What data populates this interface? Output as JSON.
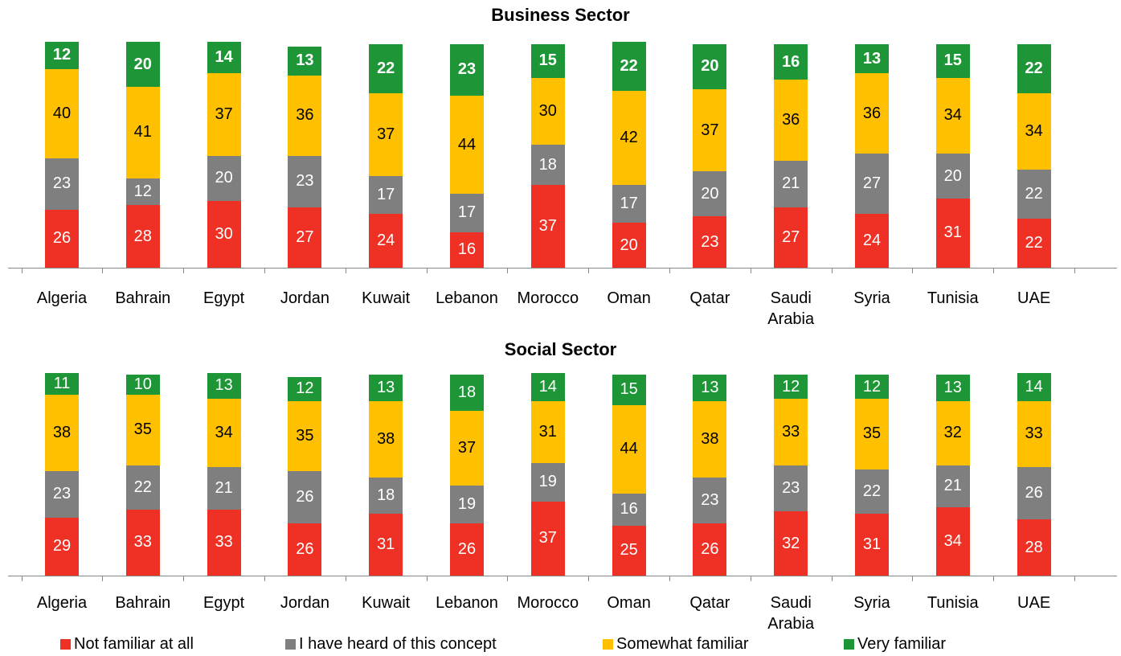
{
  "chart_data": [
    {
      "type": "stacked_bar",
      "title": "Business Sector",
      "categories": [
        "Algeria",
        "Bahrain",
        "Egypt",
        "Jordan",
        "Kuwait",
        "Lebanon",
        "Morocco",
        "Oman",
        "Qatar",
        "Saudi Arabia",
        "Syria",
        "Tunisia",
        "UAE"
      ],
      "series": [
        {
          "name": "Not familiar at all",
          "color": "#ee3124",
          "values": [
            26,
            28,
            30,
            27,
            24,
            16,
            37,
            20,
            23,
            27,
            24,
            31,
            22
          ]
        },
        {
          "name": "I have heard of this concept",
          "color": "#7f7f7f",
          "values": [
            23,
            12,
            20,
            23,
            17,
            17,
            18,
            17,
            20,
            21,
            27,
            20,
            22
          ]
        },
        {
          "name": "Somewhat familiar",
          "color": "#ffc000",
          "values": [
            40,
            41,
            37,
            36,
            37,
            44,
            30,
            42,
            37,
            36,
            36,
            34,
            34
          ]
        },
        {
          "name": "Very familiar",
          "color": "#1e9637",
          "values": [
            12,
            20,
            14,
            13,
            22,
            23,
            15,
            22,
            20,
            16,
            13,
            15,
            22
          ]
        }
      ]
    },
    {
      "type": "stacked_bar",
      "title": "Social Sector",
      "categories": [
        "Algeria",
        "Bahrain",
        "Egypt",
        "Jordan",
        "Kuwait",
        "Lebanon",
        "Morocco",
        "Oman",
        "Qatar",
        "Saudi Arabia",
        "Syria",
        "Tunisia",
        "UAE"
      ],
      "series": [
        {
          "name": "Not familiar at all",
          "color": "#ee3124",
          "values": [
            29,
            33,
            33,
            26,
            31,
            26,
            37,
            25,
            26,
            32,
            31,
            34,
            28
          ]
        },
        {
          "name": "I have heard of this concept",
          "color": "#7f7f7f",
          "values": [
            23,
            22,
            21,
            26,
            18,
            19,
            19,
            16,
            23,
            23,
            22,
            21,
            26
          ]
        },
        {
          "name": "Somewhat familiar",
          "color": "#ffc000",
          "values": [
            38,
            35,
            34,
            35,
            38,
            37,
            31,
            44,
            38,
            33,
            35,
            32,
            33
          ]
        },
        {
          "name": "Very familiar",
          "color": "#1e9637",
          "values": [
            11,
            10,
            13,
            12,
            13,
            18,
            14,
            15,
            13,
            12,
            12,
            13,
            14
          ]
        }
      ]
    }
  ]
}
